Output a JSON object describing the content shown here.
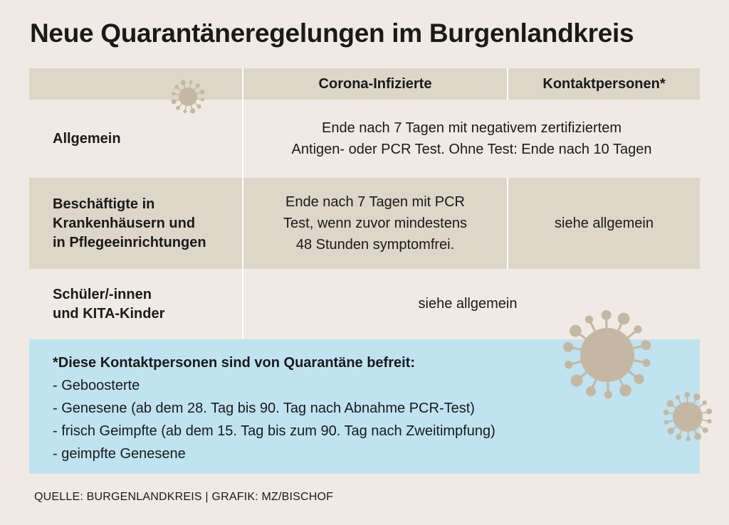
{
  "title": "Neue Quarantäneregelungen im Burgenlandkreis",
  "table": {
    "headers": [
      "",
      "Corona-Infizierte",
      "Kontaktpersonen*"
    ],
    "rows": [
      {
        "label": "Allgemein",
        "merged": [
          "Ende nach 7 Tagen mit negativem zertifiziertem",
          "Antigen- oder PCR Test. Ohne Test: Ende nach 10 Tagen"
        ]
      },
      {
        "label": [
          "Beschäftigte in",
          "Krankenhäusern und",
          "in Pflegeeinrichtungen"
        ],
        "infected": [
          "Ende nach 7 Tagen mit PCR",
          "Test, wenn zuvor mindestens",
          "48 Stunden symptomfrei."
        ],
        "contacts": "siehe allgemein"
      },
      {
        "label": [
          "Schüler/-innen",
          "und KITA-Kinder"
        ],
        "merged": "siehe allgemein"
      }
    ]
  },
  "note": {
    "heading": "*Diese Kontaktpersonen sind von Quarantäne befreit:",
    "items": [
      "- Geboosterte",
      "- Genesene (ab dem 28. Tag bis 90. Tag nach Abnahme PCR-Test)",
      "- frisch Geimpfte (ab dem 15. Tag bis zum 90. Tag nach Zweitimpfung)",
      "- geimpfte Genesene"
    ]
  },
  "source": "QUELLE: BURGENLANDKREIS | GRAFIK: MZ/BISCHOF",
  "colors": {
    "background": "#efebe4",
    "band": "#ddd6c9",
    "note": "#bfe3f1",
    "virus": "#c5b8a3"
  },
  "icons": [
    "virus-icon-header",
    "virus-icon-large",
    "virus-icon-small"
  ]
}
